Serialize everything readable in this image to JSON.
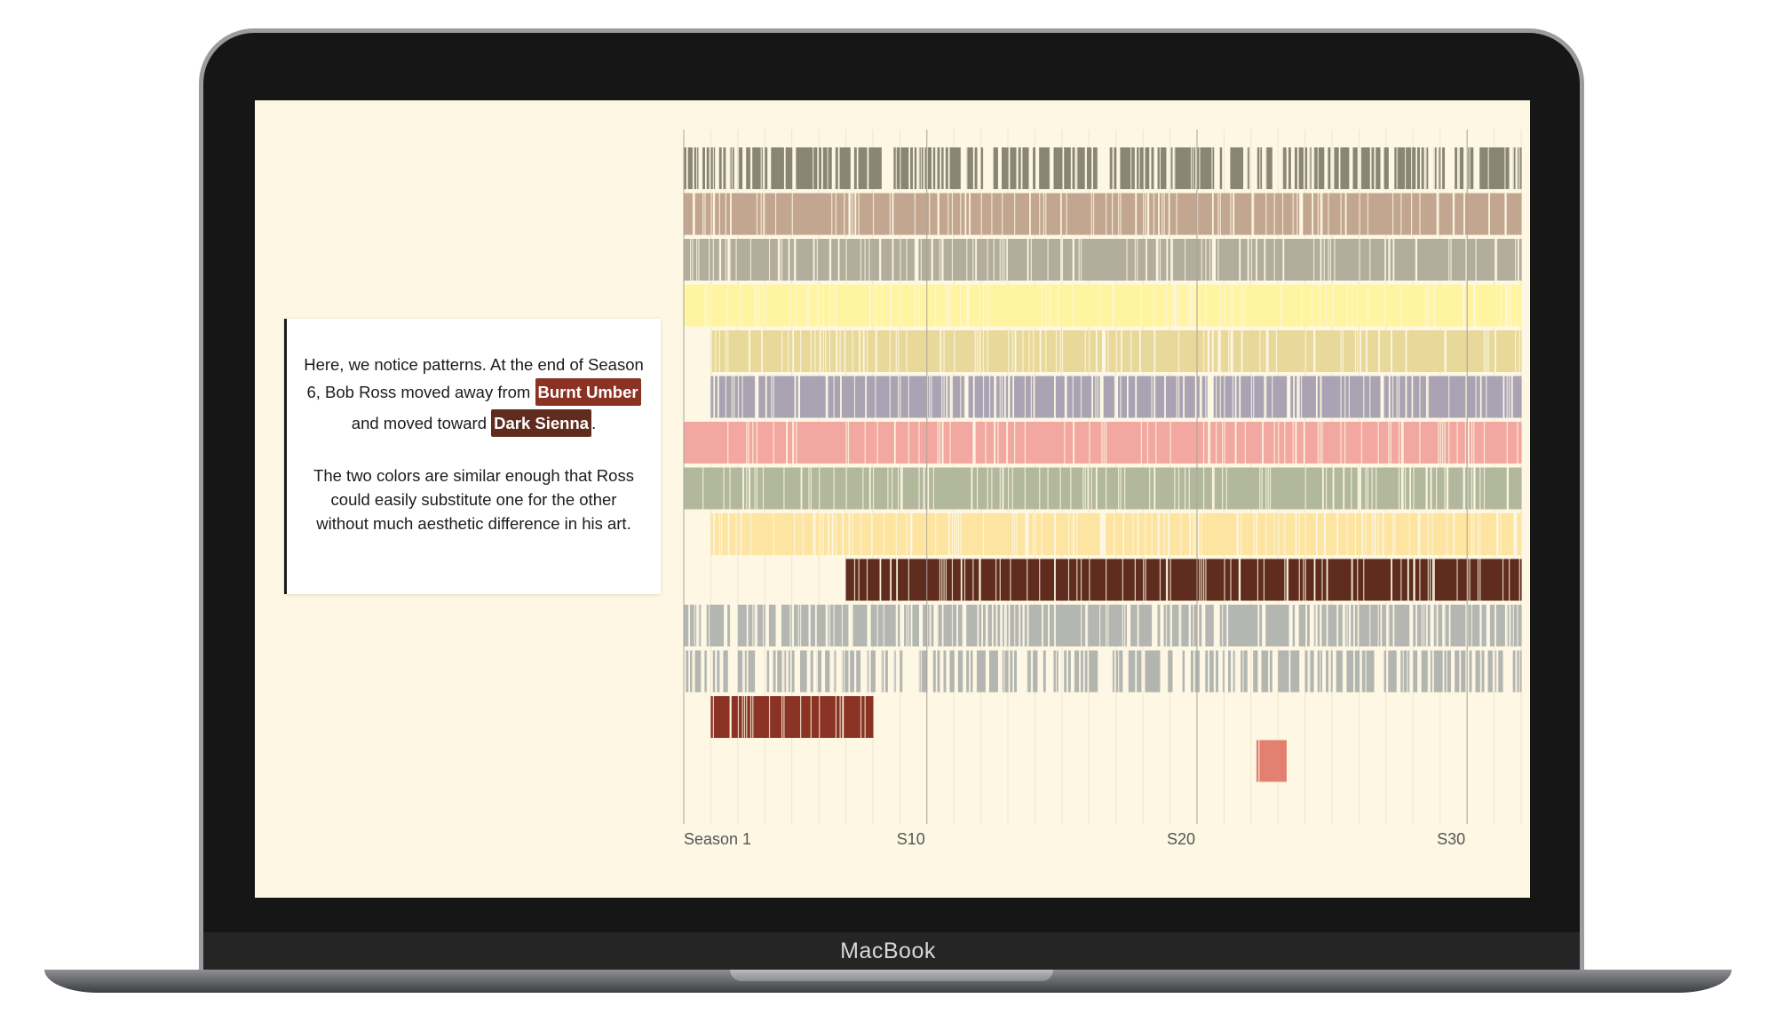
{
  "device": {
    "brand": "MacBook"
  },
  "caption": {
    "para1_before": "Here, we notice patterns. At the end of Season 6, Bob Ross moved away from ",
    "highlight1": "Burnt Umber",
    "para1_middle": " and moved toward ",
    "highlight2": "Dark Sienna",
    "para1_after": ".",
    "para2": "The two colors are similar enough that Ross could easily substitute one for the other without much aesthetic difference in his art.",
    "highlight1_color": "#8a3324",
    "highlight2_color": "#5f2c1e"
  },
  "chart_data": {
    "type": "heatmap",
    "title": "",
    "x_axis": {
      "min": 1,
      "max": 31,
      "ticks": [
        "Season 1",
        "S10",
        "S20",
        "S30"
      ],
      "tick_values": [
        1,
        10,
        20,
        30
      ]
    },
    "episodes_per_season": 13,
    "grid": true,
    "series": [
      {
        "color": "#8a8675",
        "start_season": 1,
        "end_season": 31,
        "density": 0.65
      },
      {
        "color": "#c3a690",
        "start_season": 1,
        "end_season": 31,
        "density": 0.92
      },
      {
        "color": "#b2ad9c",
        "start_season": 1,
        "end_season": 31,
        "density": 0.9
      },
      {
        "color": "#fff4a0",
        "start_season": 1,
        "end_season": 31,
        "density": 0.97
      },
      {
        "color": "#e8d99a",
        "start_season": 2,
        "end_season": 31,
        "density": 0.92
      },
      {
        "color": "#aaa3b3",
        "start_season": 2,
        "end_season": 31,
        "density": 0.85
      },
      {
        "color": "#f2a8a0",
        "start_season": 1,
        "end_season": 31,
        "density": 0.95
      },
      {
        "color": "#b2b89c",
        "start_season": 1,
        "end_season": 31,
        "density": 0.92
      },
      {
        "color": "#fde4a0",
        "start_season": 2,
        "end_season": 31,
        "density": 0.9
      },
      {
        "color": "#5f2c1e",
        "start_season": 7,
        "end_season": 31,
        "density": 0.97
      },
      {
        "color": "#b4b6b2",
        "start_season": 1,
        "end_season": 31,
        "density": 0.72
      },
      {
        "color": "#b3b5b0",
        "start_season": 1,
        "end_season": 31,
        "density": 0.5
      },
      {
        "color": "#8a3324",
        "start_season": 2,
        "end_season": 7,
        "density": 0.97
      },
      {
        "color": "#e38070",
        "start_season": 22.2,
        "end_season": 22.3,
        "density": 1.0
      }
    ]
  }
}
